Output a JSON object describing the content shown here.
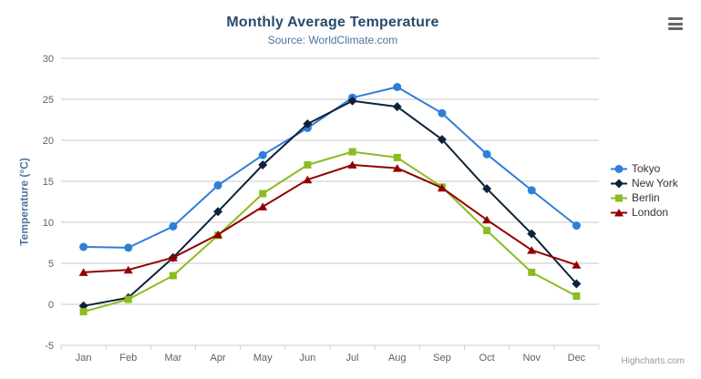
{
  "chart": {
    "title": "Monthly Average Temperature",
    "subtitle": "Source: WorldClimate.com",
    "credits": "Highcharts.com",
    "export_menu_icon": "hamburger-menu-icon",
    "colors": {
      "title": "#274b6d",
      "subtitle": "#4d759e",
      "axis_title": "#4d759e",
      "axis_labels": "#606060",
      "gridline": "#c8c8c8",
      "axis_line": "#c0d0e0",
      "legend_text": "#333333",
      "credits_text": "#999999"
    }
  },
  "chart_data": {
    "type": "line",
    "title": "Monthly Average Temperature",
    "subtitle": "Source: WorldClimate.com",
    "xlabel": "",
    "ylabel": "Temperature (°C)",
    "categories": [
      "Jan",
      "Feb",
      "Mar",
      "Apr",
      "May",
      "Jun",
      "Jul",
      "Aug",
      "Sep",
      "Oct",
      "Nov",
      "Dec"
    ],
    "ylim": [
      -5,
      30
    ],
    "y_ticks": [
      -5,
      0,
      5,
      10,
      15,
      20,
      25,
      30
    ],
    "grid": true,
    "legend_position": "right",
    "series": [
      {
        "name": "Tokyo",
        "color": "#2f7ed8",
        "marker": "circle",
        "values": [
          7.0,
          6.9,
          9.5,
          14.5,
          18.2,
          21.5,
          25.2,
          26.5,
          23.3,
          18.3,
          13.9,
          9.6
        ]
      },
      {
        "name": "New York",
        "color": "#0d233a",
        "marker": "diamond",
        "values": [
          -0.2,
          0.8,
          5.7,
          11.3,
          17.0,
          22.0,
          24.8,
          24.1,
          20.1,
          14.1,
          8.6,
          2.5
        ]
      },
      {
        "name": "Berlin",
        "color": "#8bbc21",
        "marker": "square",
        "values": [
          -0.9,
          0.6,
          3.5,
          8.4,
          13.5,
          17.0,
          18.6,
          17.9,
          14.3,
          9.0,
          3.9,
          1.0
        ]
      },
      {
        "name": "London",
        "color": "#910000",
        "marker": "triangle",
        "values": [
          3.9,
          4.2,
          5.7,
          8.5,
          11.9,
          15.2,
          17.0,
          16.6,
          14.2,
          10.3,
          6.6,
          4.8
        ]
      }
    ]
  }
}
